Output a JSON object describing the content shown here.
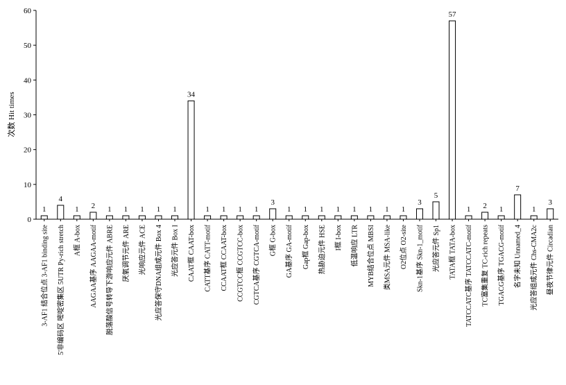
{
  "chart_data": {
    "type": "bar",
    "title": "",
    "xlabel": "",
    "ylabel": "次数 Hit times",
    "ylim": [
      0,
      60
    ],
    "yticks": [
      0,
      10,
      20,
      30,
      40,
      50,
      60
    ],
    "grid": false,
    "bar_color": "#ffffff",
    "bar_edge": "#000000",
    "categories": [
      "3-AF1 结合位点 3-AF1 binding site",
      "5'非编码区 嘧啶密集区 5UTR Py-rich stretch",
      "A框 A-box",
      "AAGAA基序 AAGAA-motif",
      "脱落酸信号转导下游响应元件 ABRE",
      "厌氧调节元件 ARE",
      "光响应元件 ACE",
      "光应答保守DNA组成元件 Box 4",
      "光应答元件 Box I",
      "CAAT框 CAAT-box",
      "CATT基序 CATT-motif",
      "CCAAT框 CCAAT-box",
      "CCGTCC框 CCGTCC-box",
      "CGTCA基序 CGTCA-motif",
      "G框 G-box",
      "GA基序 GA-motif",
      "Gap框 Gap-box",
      "热胁迫元件 HSE",
      "I框 I-box",
      "低温响应 LTR",
      "MYB结合位点 MBSI",
      "类MSA元件 MSA-like",
      "O2位点 O2-site",
      "Skn-1基序 Skn-1_motif",
      "光应答元件 Sp1",
      "TATA框 TATA-box",
      "TATCCATC基序 TATCCATC-motif",
      "TC富集重复 TC-rich repeats",
      "TGACG基序 TGACG-motif",
      "名字未知 Unnamed_4",
      "光应答组成元件 Chs-CMA2c",
      "昼夜节律元件 Circadian"
    ],
    "values": [
      1,
      4,
      1,
      2,
      1,
      1,
      1,
      1,
      1,
      34,
      1,
      1,
      1,
      1,
      3,
      1,
      1,
      1,
      1,
      1,
      1,
      1,
      1,
      3,
      5,
      57,
      1,
      2,
      1,
      7,
      1,
      3
    ]
  }
}
